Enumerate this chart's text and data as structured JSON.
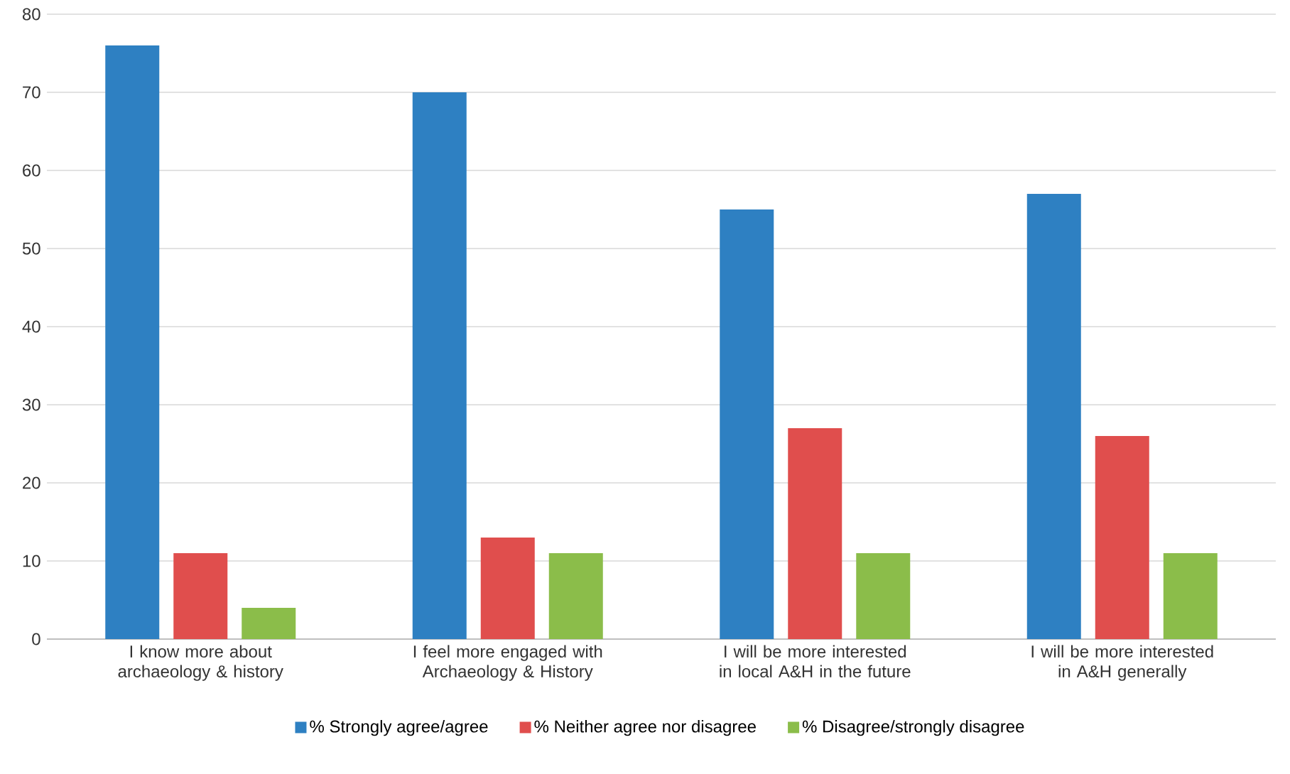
{
  "chart_data": {
    "type": "bar",
    "categories": [
      "I know more about archaeology & history",
      "I feel more engaged with Archaeology & History",
      "I will be more interested in local A&H in the future",
      "I will be more interested in A&H generally"
    ],
    "series": [
      {
        "name": "% Strongly agree/agree",
        "color": "#2e80c2",
        "values": [
          76,
          70,
          55,
          57
        ]
      },
      {
        "name": "% Neither agree nor disagree",
        "color": "#e04e4d",
        "values": [
          11,
          13,
          27,
          26
        ]
      },
      {
        "name": "% Disagree/strongly disagree",
        "color": "#8bbd4a",
        "values": [
          4,
          11,
          11,
          11
        ]
      }
    ],
    "ylim": [
      0,
      80
    ],
    "yticks": [
      0,
      10,
      20,
      30,
      40,
      50,
      60,
      70,
      80
    ],
    "grid": "y",
    "legend": "bottom"
  }
}
